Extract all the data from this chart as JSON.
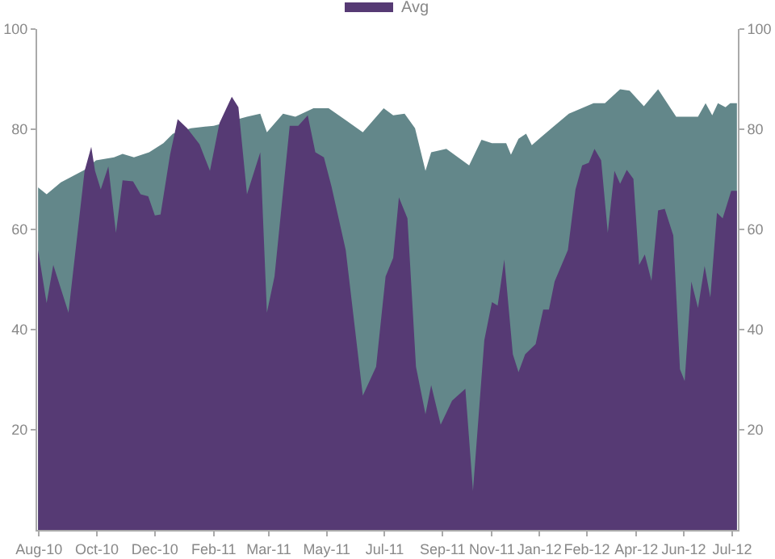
{
  "chart_data": {
    "type": "area",
    "legend": "top",
    "grid": false,
    "marker": "none",
    "xlim": [
      "2010-07-30",
      "2012-08-06"
    ],
    "xticks": [
      {
        "value": "2010-08-01",
        "label": "Aug-10"
      },
      {
        "value": "2010-10-01",
        "label": "Oct-10"
      },
      {
        "value": "2010-12-01",
        "label": "Dec-10"
      },
      {
        "value": "2011-02-01",
        "label": "Feb-11"
      },
      {
        "value": "2011-03-31",
        "label": "Mar-11"
      },
      {
        "value": "2011-05-31",
        "label": "May-11"
      },
      {
        "value": "2011-07-31",
        "label": "Jul-11"
      },
      {
        "value": "2011-09-30",
        "label": "Sep-11"
      },
      {
        "value": "2011-11-21",
        "label": "Nov-11"
      },
      {
        "value": "2012-01-10",
        "label": "Jan-12"
      },
      {
        "value": "2012-02-29",
        "label": "Feb-12"
      },
      {
        "value": "2012-04-21",
        "label": "Apr-12"
      },
      {
        "value": "2012-06-10",
        "label": "Jun-12"
      },
      {
        "value": "2012-07-31",
        "label": "Jul-12"
      }
    ],
    "ylim": [
      0,
      100
    ],
    "yticks": [
      20,
      40,
      60,
      80,
      100
    ],
    "y2lim": [
      0,
      100
    ],
    "y2ticks": [
      20,
      40,
      60,
      80,
      100
    ],
    "series": [
      {
        "color": "#63878a",
        "x": [
          "2010-07-31",
          "2010-08-09",
          "2010-08-24",
          "2010-09-18",
          "2010-09-30",
          "2010-10-19",
          "2010-10-28",
          "2010-11-09",
          "2010-11-25",
          "2010-12-10",
          "2010-12-20",
          "2011-01-08",
          "2011-02-01",
          "2011-03-08",
          "2011-03-22",
          "2011-03-29",
          "2011-04-15",
          "2011-04-28",
          "2011-05-17",
          "2011-06-02",
          "2011-06-20",
          "2011-07-08",
          "2011-07-30",
          "2011-08-09",
          "2011-08-21",
          "2011-09-01",
          "2011-09-12",
          "2011-09-18",
          "2011-10-04",
          "2011-10-28",
          "2011-11-10",
          "2011-11-21",
          "2011-12-06",
          "2011-12-11",
          "2011-12-19",
          "2011-12-27",
          "2012-01-02",
          "2012-01-11",
          "2012-01-24",
          "2012-02-10",
          "2012-03-07",
          "2012-03-19",
          "2012-04-04",
          "2012-04-14",
          "2012-04-29",
          "2012-05-14",
          "2012-06-02",
          "2012-06-25",
          "2012-07-03",
          "2012-07-10",
          "2012-07-16",
          "2012-07-24",
          "2012-07-29",
          "2012-08-05"
        ],
        "values": [
          68.4,
          67,
          69.4,
          71.9,
          73.8,
          74.4,
          75.1,
          74.4,
          75.4,
          77.2,
          79.1,
          80.2,
          80.7,
          82.5,
          83.1,
          79.4,
          83.1,
          82.5,
          84.2,
          84.2,
          81.8,
          79.4,
          84.2,
          82.8,
          83.1,
          80.2,
          71.7,
          75.4,
          76.1,
          72.8,
          77.9,
          77.2,
          77.2,
          74.9,
          78.1,
          79.1,
          76.8,
          78.3,
          80.4,
          83.1,
          85.2,
          85.2,
          88,
          87.7,
          84.6,
          88,
          82.5,
          82.5,
          85.2,
          82.8,
          85.2,
          84.4,
          85.2,
          85.2
        ]
      },
      {
        "name": "Avg",
        "color": "#563a74",
        "x": [
          "2010-07-31",
          "2010-08-09",
          "2010-08-16",
          "2010-09-01",
          "2010-09-18",
          "2010-09-25",
          "2010-09-29",
          "2010-10-05",
          "2010-10-13",
          "2010-10-21",
          "2010-10-28",
          "2010-11-08",
          "2010-11-16",
          "2010-11-24",
          "2010-12-01",
          "2010-12-07",
          "2010-12-17",
          "2010-12-25",
          "2011-01-04",
          "2011-01-17",
          "2011-01-28",
          "2011-02-07",
          "2011-02-20",
          "2011-02-27",
          "2011-03-08",
          "2011-03-22",
          "2011-03-29",
          "2011-04-06",
          "2011-04-22",
          "2011-05-01",
          "2011-05-11",
          "2011-05-19",
          "2011-05-28",
          "2011-06-05",
          "2011-06-20",
          "2011-07-08",
          "2011-07-22",
          "2011-08-01",
          "2011-08-09",
          "2011-08-15",
          "2011-08-24",
          "2011-09-02",
          "2011-09-12",
          "2011-09-18",
          "2011-09-28",
          "2011-10-10",
          "2011-10-24",
          "2011-11-01",
          "2011-11-13",
          "2011-11-21",
          "2011-11-27",
          "2011-12-04",
          "2011-12-13",
          "2011-12-19",
          "2011-12-26",
          "2012-01-06",
          "2012-01-14",
          "2012-01-20",
          "2012-01-26",
          "2012-02-09",
          "2012-02-17",
          "2012-02-24",
          "2012-03-02",
          "2012-03-08",
          "2012-03-15",
          "2012-03-22",
          "2012-03-29",
          "2012-04-04",
          "2012-04-11",
          "2012-04-18",
          "2012-04-24",
          "2012-04-30",
          "2012-05-07",
          "2012-05-14",
          "2012-05-21",
          "2012-05-30",
          "2012-06-06",
          "2012-06-11",
          "2012-06-18",
          "2012-06-25",
          "2012-07-02",
          "2012-07-08",
          "2012-07-15",
          "2012-07-21",
          "2012-07-30",
          "2012-08-05"
        ],
        "values": [
          55.9,
          45.3,
          52.9,
          43.4,
          71.7,
          76.5,
          71.7,
          68,
          72.6,
          59.3,
          69.8,
          69.6,
          67,
          66.6,
          62.8,
          63,
          74.9,
          82,
          80.2,
          77,
          71.7,
          81.2,
          86.5,
          84.4,
          67,
          75.4,
          43.4,
          50.6,
          80.7,
          80.7,
          82.8,
          75.4,
          74.4,
          68.6,
          55.9,
          26.8,
          32.6,
          50.6,
          54.3,
          66.4,
          62.2,
          32.6,
          23.1,
          28.9,
          21,
          25.8,
          28.2,
          7.8,
          37.9,
          45.5,
          44.8,
          54,
          35.1,
          31.5,
          35.1,
          37.1,
          44,
          44,
          49.6,
          55.9,
          68,
          72.8,
          73.3,
          76.1,
          73.8,
          59.3,
          71.7,
          69.1,
          71.9,
          70.1,
          52.9,
          55,
          49.7,
          63.8,
          64.1,
          58.8,
          32.1,
          29.7,
          49.6,
          44.3,
          52.7,
          46.4,
          63.3,
          62.2,
          67.7,
          67.7
        ]
      }
    ]
  }
}
